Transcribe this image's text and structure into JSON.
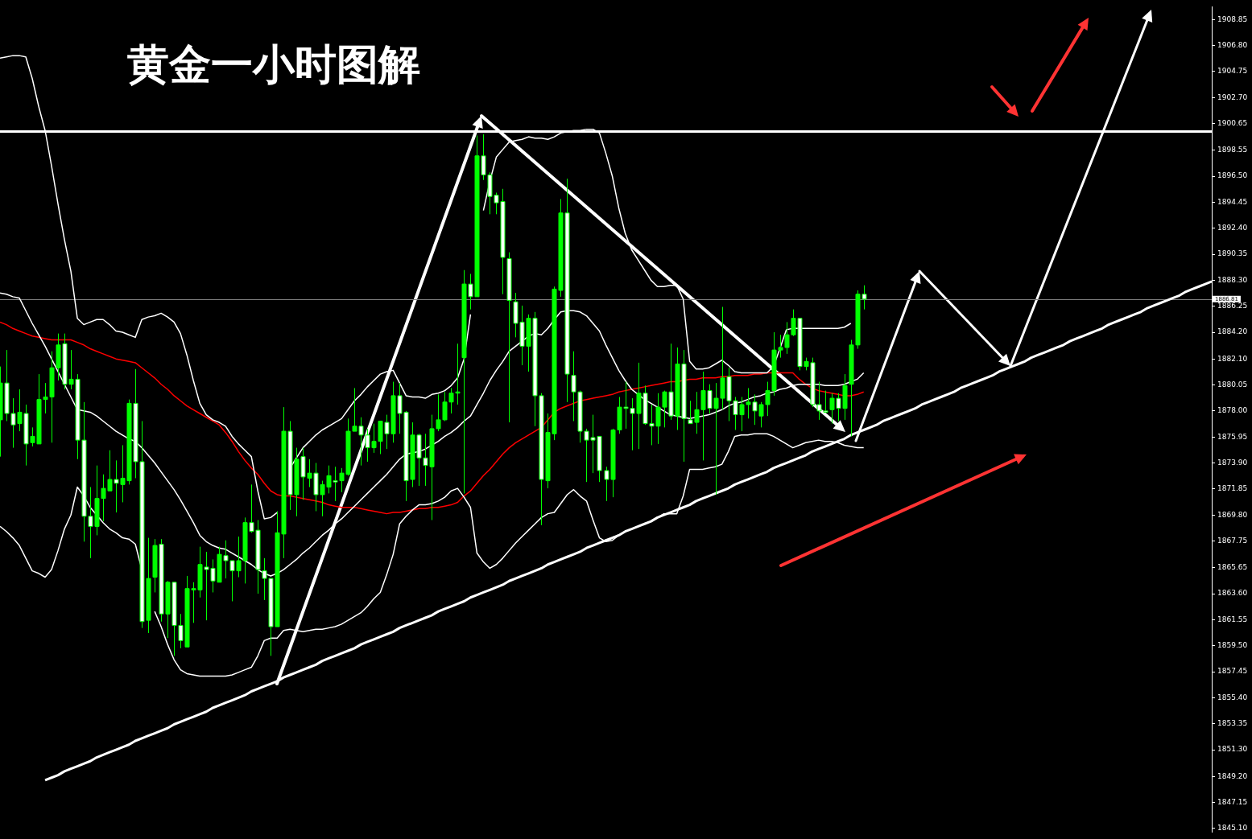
{
  "chart_data": {
    "type": "candlestick",
    "title": "黄金一小时图解",
    "color": "#00ff00",
    "categories": [
      null,
      null,
      null,
      null,
      null,
      null,
      null,
      null,
      null,
      null,
      null,
      null,
      null,
      null,
      null,
      null,
      null,
      null,
      null,
      null,
      null,
      null,
      null,
      null,
      null,
      null,
      null,
      null,
      null,
      null,
      null,
      null,
      null,
      null,
      null,
      null,
      null,
      null,
      null,
      null,
      null,
      null,
      null,
      null,
      null,
      null,
      null,
      null,
      null,
      null,
      null,
      null,
      null,
      null,
      null,
      null,
      null,
      null,
      null,
      null,
      null,
      null,
      null,
      null,
      null,
      null,
      null,
      null,
      null,
      null,
      null,
      null,
      null,
      null,
      null,
      null,
      null,
      null,
      null,
      null,
      null,
      null,
      null,
      null,
      null,
      null,
      null,
      null,
      null,
      null,
      null,
      null,
      null,
      null,
      null,
      null,
      null,
      null,
      null,
      null,
      null,
      null,
      null,
      null,
      null,
      null,
      null,
      null,
      null,
      null,
      null,
      null,
      null,
      null,
      null,
      null,
      null,
      null,
      null,
      null,
      null,
      null,
      null,
      null,
      null,
      null,
      null,
      null,
      null,
      null,
      null,
      null,
      null,
      null,
      null,
      null,
      null,
      null,
      null,
      null,
      null,
      null,
      null,
      null,
      null,
      null,
      null,
      null,
      null,
      null,
      null,
      null,
      null,
      null,
      null,
      null,
      null,
      null,
      null,
      null,
      null,
      null,
      null,
      null,
      null,
      null,
      null,
      null,
      null,
      null,
      null,
      null,
      null,
      null,
      null,
      null,
      null,
      null,
      null,
      null,
      null,
      null,
      null,
      null,
      null,
      null,
      null,
      null,
      null
    ],
    "ohlc": [
      [
        1877.3,
        1881.5,
        1874.4,
        1880.2
      ],
      [
        1880.2,
        1882.8,
        1877.2,
        1877.8
      ],
      [
        1877.8,
        1879.0,
        1875.1,
        1876.9
      ],
      [
        1877.0,
        1879.7,
        1876.4,
        1877.9
      ],
      [
        1877.8,
        1878.5,
        1873.7,
        1875.4
      ],
      [
        1875.5,
        1876.7,
        1875.2,
        1876.0
      ],
      [
        1875.4,
        1880.9,
        1875.4,
        1878.9
      ],
      [
        1878.9,
        1880.2,
        1877.8,
        1879.1
      ],
      [
        1879.1,
        1882.7,
        1875.5,
        1881.4
      ],
      [
        1881.4,
        1884.1,
        1880.4,
        1883.2
      ],
      [
        1883.3,
        1884.1,
        1879.7,
        1880.1
      ],
      [
        1880.1,
        1882.8,
        1879.7,
        1880.5
      ],
      [
        1880.5,
        1880.9,
        1874.2,
        1875.7
      ],
      [
        1875.7,
        1878.7,
        1867.7,
        1869.7
      ],
      [
        1869.7,
        1872.0,
        1866.4,
        1868.9
      ],
      [
        1868.9,
        1873.7,
        1868.2,
        1871.1
      ],
      [
        1871.1,
        1873.0,
        1869.3,
        1871.9
      ],
      [
        1871.7,
        1874.9,
        1871.7,
        1872.6
      ],
      [
        1872.6,
        1874.1,
        1870.0,
        1872.3
      ],
      [
        1872.2,
        1875.3,
        1870.8,
        1872.7
      ],
      [
        1872.5,
        1878.9,
        1872.2,
        1878.6
      ],
      [
        1878.6,
        1881.3,
        1872.7,
        1874.0
      ],
      [
        1874.0,
        1877.2,
        1860.9,
        1861.4
      ],
      [
        1861.5,
        1868.0,
        1860.5,
        1864.8
      ],
      [
        1864.9,
        1867.9,
        1863.7,
        1867.4
      ],
      [
        1867.5,
        1867.9,
        1861.4,
        1862.0
      ],
      [
        1862.0,
        1864.6,
        1860.1,
        1864.5
      ],
      [
        1864.5,
        1864.5,
        1858.7,
        1861.1
      ],
      [
        1861.1,
        1862.0,
        1859.3,
        1859.9
      ],
      [
        1859.4,
        1865.0,
        1859.4,
        1864.0
      ],
      [
        1863.9,
        1864.5,
        1861.3,
        1864.0
      ],
      [
        1863.9,
        1867.3,
        1863.3,
        1865.9
      ],
      [
        1865.7,
        1866.9,
        1861.5,
        1865.5
      ],
      [
        1865.6,
        1866.3,
        1863.7,
        1864.6
      ],
      [
        1864.5,
        1867.3,
        1864.5,
        1866.7
      ],
      [
        1866.6,
        1867.8,
        1864.8,
        1866.2
      ],
      [
        1866.2,
        1866.2,
        1863.0,
        1865.4
      ],
      [
        1865.4,
        1868.1,
        1864.9,
        1866.2
      ],
      [
        1866.2,
        1869.6,
        1864.4,
        1869.2
      ],
      [
        1869.2,
        1872.2,
        1868.4,
        1868.5
      ],
      [
        1868.6,
        1869.4,
        1863.6,
        1865.5
      ],
      [
        1865.4,
        1866.4,
        1863.1,
        1864.8
      ],
      [
        1864.8,
        1864.8,
        1858.7,
        1861.0
      ],
      [
        1861.0,
        1870.1,
        1861.0,
        1868.4
      ],
      [
        1868.3,
        1878.3,
        1866.4,
        1876.4
      ],
      [
        1876.4,
        1877.2,
        1870.2,
        1871.4
      ],
      [
        1871.4,
        1875.1,
        1869.7,
        1874.2
      ],
      [
        1874.4,
        1875.1,
        1871.0,
        1872.8
      ],
      [
        1872.7,
        1874.2,
        1872.0,
        1873.1
      ],
      [
        1873.1,
        1873.9,
        1870.1,
        1871.4
      ],
      [
        1871.4,
        1872.5,
        1869.7,
        1872.2
      ],
      [
        1872.0,
        1873.7,
        1871.5,
        1872.9
      ],
      [
        1872.5,
        1873.6,
        1870.9,
        1872.4
      ],
      [
        1872.5,
        1873.5,
        1871.6,
        1873.1
      ],
      [
        1873.0,
        1877.4,
        1872.9,
        1876.4
      ],
      [
        1876.4,
        1879.8,
        1876.4,
        1876.8
      ],
      [
        1876.8,
        1877.5,
        1873.7,
        1876.1
      ],
      [
        1876.1,
        1876.6,
        1874.0,
        1875.1
      ],
      [
        1875.1,
        1877.0,
        1874.7,
        1875.6
      ],
      [
        1875.6,
        1877.2,
        1874.6,
        1877.2
      ],
      [
        1877.1,
        1877.7,
        1875.0,
        1876.2
      ],
      [
        1876.2,
        1880.3,
        1875.5,
        1879.2
      ],
      [
        1879.2,
        1880.2,
        1876.2,
        1877.8
      ],
      [
        1877.9,
        1878.0,
        1870.9,
        1872.5
      ],
      [
        1872.6,
        1877.1,
        1872.0,
        1876.1
      ],
      [
        1876.1,
        1876.2,
        1872.1,
        1874.3
      ],
      [
        1874.3,
        1876.2,
        1872.1,
        1873.7
      ],
      [
        1873.6,
        1877.7,
        1869.4,
        1876.6
      ],
      [
        1876.6,
        1879.3,
        1876.4,
        1877.3
      ],
      [
        1877.3,
        1879.5,
        1877.2,
        1878.7
      ],
      [
        1878.7,
        1879.8,
        1877.8,
        1879.4
      ],
      [
        1879.4,
        1883.3,
        1878.5,
        1879.5
      ],
      [
        1882.2,
        1889.1,
        1871.5,
        1888.0
      ],
      [
        1888.0,
        1888.8,
        1886.0,
        1887.0
      ],
      [
        1887.0,
        1899.7,
        1887.0,
        1898.1
      ],
      [
        1898.1,
        1899.8,
        1896.2,
        1896.6
      ],
      [
        1896.6,
        1896.8,
        1893.5,
        1894.9
      ],
      [
        1895.0,
        1895.2,
        1893.5,
        1894.4
      ],
      [
        1894.5,
        1895.5,
        1887.2,
        1890.1
      ],
      [
        1890.0,
        1890.5,
        1877.1,
        1886.7
      ],
      [
        1886.6,
        1887.3,
        1883.8,
        1884.9
      ],
      [
        1885.0,
        1886.3,
        1881.6,
        1883.1
      ],
      [
        1883.1,
        1885.6,
        1881.1,
        1885.3
      ],
      [
        1885.3,
        1885.8,
        1876.8,
        1879.2
      ],
      [
        1879.2,
        1879.4,
        1869.0,
        1872.6
      ],
      [
        1872.5,
        1877.8,
        1871.9,
        1876.3
      ],
      [
        1876.2,
        1887.8,
        1875.7,
        1887.6
      ],
      [
        1887.5,
        1894.7,
        1887.0,
        1893.6
      ],
      [
        1893.6,
        1896.3,
        1878.7,
        1880.9
      ],
      [
        1880.8,
        1882.7,
        1877.2,
        1879.5
      ],
      [
        1879.5,
        1879.6,
        1875.5,
        1876.4
      ],
      [
        1876.4,
        1876.6,
        1872.4,
        1875.7
      ],
      [
        1875.9,
        1877.7,
        1873.1,
        1875.7
      ],
      [
        1876.0,
        1876.0,
        1872.4,
        1873.3
      ],
      [
        1873.3,
        1873.6,
        1870.9,
        1872.6
      ],
      [
        1872.6,
        1876.6,
        1871.2,
        1876.5
      ],
      [
        1876.5,
        1879.1,
        1876.2,
        1878.3
      ],
      [
        1878.3,
        1880.3,
        1876.6,
        1878.2
      ],
      [
        1878.2,
        1879.0,
        1874.9,
        1877.8
      ],
      [
        1877.8,
        1881.8,
        1875.0,
        1879.4
      ],
      [
        1879.4,
        1880.0,
        1876.9,
        1877.0
      ],
      [
        1877.0,
        1878.5,
        1875.3,
        1876.8
      ],
      [
        1876.8,
        1879.4,
        1875.4,
        1878.3
      ],
      [
        1878.3,
        1879.6,
        1876.7,
        1879.5
      ],
      [
        1879.5,
        1883.3,
        1877.3,
        1877.6
      ],
      [
        1877.6,
        1883.0,
        1876.5,
        1881.7
      ],
      [
        1881.7,
        1882.8,
        1874.0,
        1877.4
      ],
      [
        1877.3,
        1878.8,
        1877.0,
        1877.0
      ],
      [
        1877.1,
        1879.5,
        1876.2,
        1878.1
      ],
      [
        1878.1,
        1881.1,
        1874.1,
        1879.6
      ],
      [
        1879.6,
        1880.1,
        1877.8,
        1878.2
      ],
      [
        1878.2,
        1880.2,
        1871.4,
        1879.0
      ],
      [
        1879.0,
        1886.2,
        1878.1,
        1880.6
      ],
      [
        1880.7,
        1881.4,
        1877.2,
        1878.8
      ],
      [
        1878.8,
        1879.1,
        1876.5,
        1877.7
      ],
      [
        1877.7,
        1879.1,
        1876.4,
        1878.5
      ],
      [
        1878.5,
        1879.8,
        1877.4,
        1878.7
      ],
      [
        1878.7,
        1879.3,
        1876.9,
        1878.0
      ],
      [
        1877.6,
        1878.7,
        1876.7,
        1878.5
      ],
      [
        1878.5,
        1880.3,
        1877.6,
        1879.6
      ],
      [
        1879.6,
        1884.2,
        1879.2,
        1882.8
      ],
      [
        1882.8,
        1884.0,
        1882.2,
        1883.0
      ],
      [
        1883.0,
        1885.0,
        1882.5,
        1884.0
      ],
      [
        1884.0,
        1886.0,
        1883.9,
        1885.3
      ],
      [
        1885.3,
        1885.3,
        1881.2,
        1881.5
      ],
      [
        1881.5,
        1882.2,
        1881.2,
        1881.9
      ],
      [
        1881.8,
        1882.2,
        1878.3,
        1878.5
      ],
      [
        1878.5,
        1880.3,
        1877.3,
        1878.0
      ],
      [
        1878.0,
        1879.6,
        1877.9,
        1877.9
      ],
      [
        1878.1,
        1879.4,
        1877.0,
        1879.0
      ],
      [
        1879.0,
        1879.4,
        1877.2,
        1878.2
      ],
      [
        1878.2,
        1880.9,
        1877.3,
        1880.0
      ],
      [
        1880.1,
        1883.6,
        1876.0,
        1883.2
      ],
      [
        1883.2,
        1887.5,
        1882.9,
        1887.2
      ],
      [
        1887.2,
        1887.9,
        1886.0,
        1886.81
      ],
      null,
      null,
      null,
      null,
      null,
      null,
      null,
      null,
      null,
      null,
      null,
      null,
      null,
      null,
      null,
      null,
      null,
      null,
      null,
      null,
      null,
      null,
      null,
      null,
      null,
      null,
      null,
      null,
      null,
      null,
      null,
      null,
      null,
      null,
      null,
      null,
      null,
      null,
      null,
      null,
      null,
      null,
      null,
      null,
      null,
      null,
      null,
      null,
      null,
      null,
      null,
      null,
      null,
      null
    ],
    "series": [
      {
        "type": "line",
        "color": "#ffffff",
        "values": [
          1905.8,
          1905.9,
          1906.0,
          1906.0,
          1905.9,
          1904.2,
          1902.0,
          1900.1,
          1897.3,
          1894.3,
          1891.5,
          1889.0,
          1885.3,
          1884.8,
          1885.0,
          1885.2,
          1885.2,
          1884.8,
          1884.3,
          1884.2,
          1884.0,
          1883.8,
          1885.2,
          1885.4,
          1885.5,
          1885.7,
          1885.4,
          1885.0,
          1884.1,
          1882.4,
          1880.4,
          1878.6,
          1877.7,
          1877.3,
          1877.1,
          1876.8,
          1876.0,
          1875.4,
          1874.9,
          1874.4,
          1871.7,
          1869.5,
          1869.6,
          1870.0,
          null,
          1873.5,
          1874.3,
          1875.1,
          1875.6,
          1876.1,
          1876.5,
          1876.8,
          1877.1,
          1877.4,
          1878.1,
          1878.8,
          1879.3,
          1879.9,
          1880.4,
          1880.9,
          1881.1,
          1881.2,
          1880.2,
          1879.2,
          1879.1,
          1879.1,
          1879.0,
          1879.3,
          1879.4,
          1879.6,
          1880.0,
          1880.6,
          1882.1,
          1885.6,
          null,
          1893.8,
          1896.1,
          1898.0,
          1898.6,
          1899.2,
          1899.3,
          1899.4,
          1899.6,
          1899.5,
          1899.5,
          1899.4,
          1899.6,
          1899.9,
          1900.0,
          1900.1,
          1900.1,
          1900.2,
          1900.2,
          1899.9,
          1898.3,
          1896.5,
          1894.0,
          1892.0,
          1890.7,
          1889.9,
          1889.1,
          1888.3,
          1887.8,
          1887.8,
          1887.9,
          1887.9,
          1886.8,
          1881.9,
          1881.3,
          1881.3,
          1881.4,
          1881.7,
          1882.0,
          1881.6,
          1881.1,
          1881.0,
          1881.0,
          1881.0,
          1881.0,
          1881.0,
          1881.5,
          1882.9,
          1884.4,
          1884.5,
          1884.5,
          1884.5,
          1884.5,
          1884.5,
          1884.5,
          1884.5,
          1884.5,
          1884.6,
          1884.9,
          null,
          null,
          null,
          null,
          null,
          null,
          null,
          null,
          null,
          null,
          null,
          null,
          null,
          null,
          null,
          null,
          null,
          null,
          null,
          null,
          null,
          null,
          null,
          null,
          null,
          null,
          null,
          null,
          null,
          null,
          null,
          null,
          null,
          null,
          null,
          null,
          null,
          null,
          null,
          null,
          null,
          null,
          null,
          null,
          null,
          null,
          null,
          null,
          null,
          null,
          null,
          null,
          null,
          null,
          null,
          null
        ]
      },
      {
        "type": "line",
        "color": "#ffffff",
        "values": [
          1887.3,
          1887.2,
          1887.0,
          1886.9,
          1885.9,
          1884.9,
          1884.0,
          1883.1,
          1882.1,
          1881.1,
          1880.1,
          1879.1,
          1878.1,
          1878.0,
          1877.9,
          1877.6,
          1877.2,
          1876.8,
          1876.4,
          1876.1,
          1875.8,
          1875.6,
          1875.1,
          1874.5,
          1873.9,
          1873.2,
          1872.5,
          1871.8,
          1871.0,
          1870.1,
          1869.2,
          1868.2,
          1867.7,
          1867.4,
          1867.2,
          1867.1,
          1866.8,
          1866.5,
          1866.2,
          1865.9,
          1865.5,
          1865.2,
          1865.0,
          1865.2,
          1865.5,
          1865.9,
          1866.3,
          1866.8,
          1867.2,
          1867.7,
          1868.2,
          1868.6,
          1869.1,
          1869.5,
          1870.0,
          1870.5,
          1871.0,
          1871.5,
          1872.0,
          1872.5,
          1873.0,
          1873.6,
          1874.2,
          1874.6,
          1874.7,
          1874.8,
          1875.0,
          1875.3,
          1875.6,
          1876.0,
          1876.3,
          1876.7,
          1877.2,
          1877.6,
          1878.5,
          1879.4,
          1880.4,
          1881.2,
          1881.9,
          1882.7,
          1883.1,
          1883.5,
          1883.9,
          1884.1,
          1884.0,
          1884.5,
          1885.2,
          1885.8,
          1885.9,
          1885.9,
          1885.8,
          1885.5,
          1884.9,
          1884.3,
          1883.2,
          1882.2,
          1881.2,
          1880.4,
          1879.7,
          1879.3,
          1878.9,
          1878.6,
          1878.3,
          1878.0,
          1877.7,
          1877.6,
          1877.5,
          1877.4,
          1877.5,
          1877.6,
          1877.7,
          1877.9,
          1878.1,
          1878.4,
          1878.6,
          1878.7,
          1878.9,
          1879.1,
          1879.2,
          1879.4,
          1879.5,
          1879.7,
          1879.8,
          1880.0,
          1880.1,
          1880.1,
          1880.1,
          1880.1,
          1880.0,
          1880.0,
          1880.0,
          1880.1,
          1880.3,
          1880.5,
          1881.0,
          null,
          null,
          null,
          null,
          null,
          null,
          null,
          null,
          null,
          null,
          null,
          null,
          null,
          null,
          null,
          null,
          null,
          null,
          null,
          null,
          null,
          null,
          null,
          null,
          null,
          null,
          null,
          null,
          null,
          null,
          null,
          null,
          null,
          null,
          null,
          null,
          null,
          null,
          null,
          null,
          null,
          null,
          null,
          null,
          null,
          null,
          null,
          null,
          null,
          null,
          null,
          null,
          null,
          null
        ]
      },
      {
        "type": "line",
        "color": "#ffffff",
        "values": [
          1868.9,
          1868.5,
          1868.0,
          1867.4,
          1866.4,
          1865.4,
          1865.2,
          1864.9,
          1865.5,
          1867.0,
          1868.7,
          1869.8,
          1872.0,
          1871.3,
          1870.4,
          1869.8,
          1869.2,
          1868.7,
          1868.4,
          1868.0,
          1867.9,
          1867.5,
          1865.5,
          null,
          1862.2,
          1861.0,
          1859.6,
          1858.4,
          1857.6,
          1857.3,
          1857.2,
          1857.1,
          1857.1,
          1857.1,
          1857.1,
          1857.1,
          1857.2,
          1857.4,
          1857.6,
          1857.8,
          1858.7,
          1859.9,
          1860.1,
          1860.1,
          1860.7,
          1860.8,
          1860.7,
          1860.6,
          1860.7,
          1860.8,
          1860.8,
          1860.9,
          1861.0,
          1861.2,
          1861.5,
          1861.8,
          1862.1,
          1862.6,
          1863.2,
          1863.7,
          1865.1,
          1866.7,
          1869.1,
          1869.7,
          1870.2,
          1870.6,
          1870.6,
          1870.7,
          1870.9,
          1871.2,
          1871.7,
          1871.9,
          1871.2,
          1870.4,
          1866.8,
          1866.1,
          1865.6,
          1865.9,
          1866.4,
          1867.0,
          1867.6,
          1868.1,
          1868.6,
          1869.1,
          1869.6,
          1869.9,
          1870.0,
          1870.7,
          1871.4,
          1871.8,
          1871.3,
          1870.9,
          1869.4,
          1868.0,
          1867.7,
          1867.8,
          1868.2,
          1868.5,
          1868.7,
          1868.9,
          1869.1,
          1869.3,
          1869.6,
          1869.9,
          1869.9,
          1869.9,
          1871.3,
          1873.4,
          1873.4,
          1873.4,
          1873.5,
          1873.6,
          1873.8,
          1874.8,
          1876.0,
          1876.1,
          1876.1,
          1876.2,
          1876.2,
          1876.2,
          1876.0,
          1875.7,
          1875.4,
          1875.1,
          1875.3,
          1875.5,
          1875.6,
          1875.7,
          1875.6,
          1875.6,
          1875.5,
          1875.3,
          1875.2,
          1875.1,
          1875.1,
          null,
          null,
          null,
          null,
          null,
          null,
          null,
          null,
          null,
          null,
          null,
          null,
          null,
          null,
          null,
          null,
          null,
          null,
          null,
          null,
          null,
          null,
          null,
          null,
          null,
          null,
          null,
          null,
          null,
          null,
          null,
          null,
          null,
          null,
          null,
          null,
          null,
          null,
          null,
          null,
          null,
          null,
          null,
          null,
          null,
          null,
          null,
          null,
          null,
          null,
          null,
          null,
          null,
          null
        ]
      },
      {
        "type": "line",
        "color": "#ff0000",
        "values": [
          1885.0,
          1884.8,
          1884.5,
          1884.3,
          1884.1,
          1883.9,
          1883.8,
          1883.7,
          1883.6,
          1883.6,
          1883.6,
          1883.6,
          1883.4,
          1883.2,
          1882.9,
          1882.7,
          1882.5,
          1882.3,
          1882.1,
          1882.0,
          1881.9,
          1881.8,
          1881.4,
          1881.0,
          1880.6,
          1880.1,
          1879.7,
          1879.2,
          1878.8,
          1878.4,
          1878.1,
          1877.8,
          1877.5,
          1877.2,
          1876.9,
          1876.3,
          1875.6,
          1874.8,
          1874.1,
          1873.5,
          1873.0,
          1872.3,
          1871.7,
          1871.4,
          1871.3,
          1871.3,
          1871.2,
          1871.1,
          1871.0,
          1870.9,
          1870.8,
          1870.6,
          1870.5,
          1870.4,
          1870.4,
          1870.4,
          1870.3,
          1870.2,
          1870.1,
          1870.0,
          1869.9,
          1870.0,
          1870.0,
          1870.1,
          1870.2,
          1870.3,
          1870.3,
          1870.4,
          1870.4,
          1870.5,
          1870.6,
          1870.8,
          1871.3,
          1871.7,
          1872.3,
          1872.9,
          1873.4,
          1874.0,
          1874.6,
          1875.1,
          1875.5,
          1875.8,
          1876.1,
          1876.4,
          1876.7,
          1877.3,
          1877.9,
          1878.2,
          1878.4,
          1878.6,
          1878.8,
          1878.9,
          1879.0,
          1879.1,
          1879.2,
          1879.3,
          1879.5,
          1879.6,
          1879.7,
          1879.8,
          1879.9,
          1880.0,
          1880.1,
          1880.2,
          1880.3,
          1880.3,
          1880.4,
          1880.5,
          1880.5,
          1880.6,
          1880.6,
          1880.6,
          1880.7,
          1880.7,
          1880.8,
          1880.8,
          1880.8,
          1880.9,
          1880.9,
          1881.0,
          1881.0,
          1881.0,
          1881.0,
          1881.0,
          1880.5,
          1880.1,
          1879.8,
          1879.6,
          1879.5,
          1879.4,
          1879.3,
          1879.2,
          1879.2,
          1879.3,
          1879.5,
          null,
          null,
          null,
          null,
          null,
          null,
          null,
          null,
          null,
          null,
          null,
          null,
          null,
          null,
          null,
          null,
          null,
          null,
          null,
          null,
          null,
          null,
          null,
          null,
          null,
          null,
          null,
          null,
          null,
          null,
          null,
          null,
          null,
          null,
          null,
          null,
          null,
          null,
          null,
          null,
          null,
          null,
          null,
          null,
          null,
          null,
          null,
          null,
          null,
          null,
          null,
          null,
          null,
          null
        ]
      },
      {
        "type": "line",
        "color": "#ffffff",
        "values": [
          null,
          null,
          null,
          null,
          null,
          null,
          null,
          1848.9,
          1849.1,
          1849.3,
          1849.6,
          1849.8,
          1850.0,
          1850.2,
          1850.4,
          1850.7,
          1850.9,
          1851.1,
          1851.3,
          1851.5,
          1851.7,
          1852.0,
          1852.2,
          1852.4,
          1852.6,
          1852.8,
          1853.0,
          1853.3,
          1853.5,
          1853.7,
          1853.9,
          1854.1,
          1854.3,
          1854.6,
          1854.8,
          1855.0,
          1855.2,
          1855.4,
          1855.6,
          1855.9,
          1856.1,
          1856.3,
          1856.5,
          1856.7,
          1857.0,
          1857.2,
          1857.4,
          1857.6,
          1857.8,
          1858.0,
          1858.3,
          1858.5,
          1858.7,
          1858.9,
          1859.1,
          1859.3,
          1859.6,
          1859.8,
          1860.0,
          1860.2,
          1860.4,
          1860.6,
          1860.9,
          1861.1,
          1861.3,
          1861.5,
          1861.7,
          1861.9,
          1862.2,
          1862.4,
          1862.6,
          1862.8,
          1863.0,
          1863.3,
          1863.5,
          1863.7,
          1863.9,
          1864.1,
          1864.3,
          1864.6,
          1864.8,
          1865.0,
          1865.2,
          1865.4,
          1865.6,
          1865.9,
          1866.1,
          1866.3,
          1866.5,
          1866.7,
          1866.9,
          1867.2,
          1867.4,
          1867.6,
          1867.8,
          1868.0,
          1868.2,
          1868.5,
          1868.7,
          1868.9,
          1869.1,
          1869.3,
          1869.6,
          1869.8,
          1870.0,
          1870.2,
          1870.4,
          1870.6,
          1870.9,
          1871.1,
          1871.3,
          1871.5,
          1871.7,
          1871.9,
          1872.2,
          1872.4,
          1872.6,
          1872.8,
          1873.0,
          1873.2,
          1873.5,
          1873.7,
          1873.9,
          1874.1,
          1874.3,
          1874.5,
          1874.8,
          1875.0,
          1875.2,
          1875.4,
          1875.6,
          1875.8,
          1876.1,
          1876.3,
          1876.5,
          1876.7,
          1876.9,
          1877.2,
          1877.4,
          1877.6,
          1877.8,
          1878.0,
          1878.2,
          1878.5,
          1878.7,
          1878.9,
          1879.1,
          1879.3,
          1879.5,
          1879.8,
          1880.0,
          1880.2,
          1880.4,
          1880.6,
          1880.8,
          1881.1,
          1881.3,
          1881.5,
          1881.7,
          1881.9,
          1882.2,
          1882.4,
          1882.6,
          1882.8,
          1883.0,
          1883.2,
          1883.5,
          1883.7,
          1883.9,
          1884.1,
          1884.3,
          1884.5,
          1884.8,
          1885.0,
          1885.2,
          1885.4,
          1885.6,
          1885.8,
          1886.1,
          1886.3,
          1886.5,
          1886.7,
          1886.9,
          1887.1,
          1887.4,
          1887.6,
          1887.8,
          1888.0,
          1888.2
        ]
      }
    ],
    "colors": [
      "#00ff00",
      "#ffffff",
      "#ffffff",
      "#00ff00",
      "#ffffff",
      "#00ff00",
      "#00ff00",
      "#00ff00",
      "#00ff00",
      "#00ff00",
      "#ffffff",
      "#00ff00",
      "#ffffff",
      "#ffffff",
      "#ffffff",
      "#00ff00",
      "#00ff00",
      "#00ff00",
      "#ffffff",
      "#00ff00",
      "#00ff00",
      "#ffffff",
      "#ffffff",
      "#00ff00",
      "#00ff00",
      "#ffffff",
      "#00ff00",
      "#ffffff",
      "#ffffff",
      "#00ff00",
      "#00ff00",
      "#00ff00",
      "#ffffff",
      "#ffffff",
      "#00ff00",
      "#ffffff",
      "#ffffff",
      "#00ff00",
      "#00ff00",
      "#ffffff",
      "#ffffff",
      "#ffffff",
      "#ffffff",
      "#00ff00",
      "#00ff00",
      "#ffffff",
      "#00ff00",
      "#ffffff",
      "#00ff00",
      "#ffffff",
      "#00ff00",
      "#00ff00",
      "#ffffff",
      "#00ff00",
      "#00ff00",
      "#00ff00",
      "#ffffff",
      "#ffffff",
      "#00ff00",
      "#00ff00",
      "#ffffff",
      "#00ff00",
      "#ffffff",
      "#ffffff",
      "#00ff00",
      "#ffffff",
      "#ffffff",
      "#00ff00",
      "#00ff00",
      "#00ff00",
      "#00ff00",
      "#00ff00",
      "#00ff00",
      "#ffffff",
      "#00ff00",
      "#ffffff",
      "#ffffff",
      "#ffffff",
      "#ffffff",
      "#ffffff",
      "#ffffff",
      "#ffffff",
      "#00ff00",
      "#ffffff",
      "#ffffff",
      "#00ff00",
      "#00ff00",
      "#00ff00",
      "#ffffff",
      "#ffffff",
      "#ffffff",
      "#ffffff",
      "#ffffff",
      "#ffffff",
      "#ffffff",
      "#00ff00",
      "#00ff00",
      "#ffffff",
      "#ffffff",
      "#00ff00",
      "#ffffff",
      "#ffffff",
      "#00ff00",
      "#00ff00",
      "#ffffff",
      "#00ff00",
      "#ffffff",
      "#ffffff",
      "#00ff00",
      "#00ff00",
      "#ffffff",
      "#00ff00",
      "#00ff00",
      "#ffffff",
      "#ffffff",
      "#00ff00",
      "#00ff00",
      "#ffffff",
      "#00ff00",
      "#00ff00",
      "#00ff00",
      "#00ff00",
      "#00ff00",
      "#00ff00",
      "#ffffff",
      "#00ff00",
      "#ffffff",
      "#ffffff",
      "#ffffff",
      "#00ff00",
      "#ffffff",
      "#00ff00",
      "#00ff00",
      "#00ff00",
      "#ffffff",
      null,
      null,
      null,
      null,
      null,
      null,
      null,
      null,
      null,
      null,
      null,
      null,
      null,
      null,
      null,
      null,
      null,
      null,
      null,
      null,
      null,
      null,
      null,
      null,
      null,
      null,
      null,
      null,
      null,
      null,
      null,
      null,
      null,
      null,
      null,
      null,
      null,
      null,
      null,
      null,
      null,
      null,
      null,
      null,
      null,
      null,
      null,
      null,
      null,
      null,
      null,
      null,
      null,
      null
    ],
    "ylim": [
      1844.8,
      1909.85
    ],
    "yticks": [
      {
        "value": 1845.1,
        "label": "1845.10"
      },
      1847.15,
      {
        "value": 1849.2,
        "label": "1849.20"
      },
      {
        "value": 1851.3,
        "label": "1851.30"
      },
      1853.35,
      {
        "value": 1855.4,
        "label": "1855.40"
      },
      1857.45,
      {
        "value": 1859.5,
        "label": "1859.50"
      },
      1861.55,
      {
        "value": 1863.6,
        "label": "1863.60"
      },
      1865.65,
      1867.75,
      {
        "value": 1869.8,
        "label": "1869.80"
      },
      1871.85,
      {
        "value": 1873.9,
        "label": "1873.90"
      },
      1875.95,
      {
        "value": 1878,
        "label": "1878.00"
      },
      1880.05,
      {
        "value": 1882.1,
        "label": "1882.10"
      },
      {
        "value": 1884.2,
        "label": "1884.20"
      },
      1886.25,
      {
        "value": 1888.3,
        "label": "1888.30"
      },
      1890.35,
      {
        "value": 1892.4,
        "label": "1892.40"
      },
      1894.45,
      {
        "value": 1896.5,
        "label": "1896.50"
      },
      1898.55,
      1900.65,
      {
        "value": 1902.7,
        "label": "1902.70"
      },
      1904.75,
      {
        "value": 1906.8,
        "label": "1906.80"
      },
      1908.85
    ],
    "tick_labels": "y",
    "ref_lines": [
      {
        "axis": "y",
        "value": 1886.81,
        "label": "1886.81",
        "color": "#808080"
      },
      {
        "axis": "y",
        "value": 1900.05,
        "color": "#ffffff"
      }
    ]
  }
}
